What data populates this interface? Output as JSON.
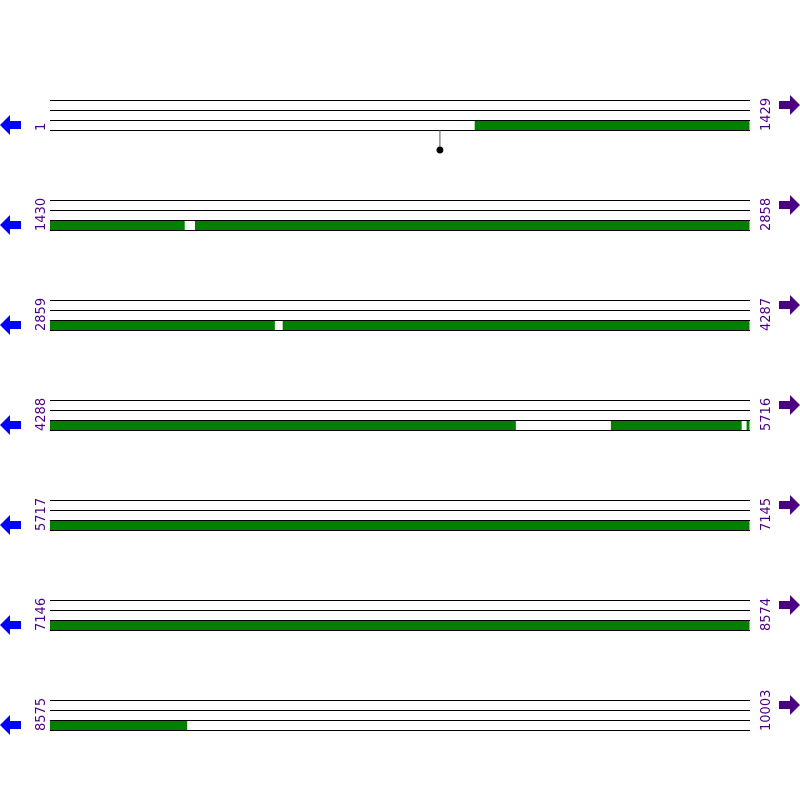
{
  "colors": {
    "feature": "#008000",
    "label": "#4b0082",
    "left_arrow": "#0000ff",
    "right_arrow": "#4b0082",
    "marker_stem": "#cc0000",
    "line": "#000000"
  },
  "icons": {
    "left": "arrow-left-icon",
    "right": "arrow-right-icon"
  },
  "bases_per_row": 1429,
  "rows": [
    {
      "start": "1",
      "end": "1429",
      "features": [
        [
          868,
          1429
        ]
      ],
      "markers": [
        797
      ]
    },
    {
      "start": "1430",
      "end": "2858",
      "features": [
        [
          1430,
          1705
        ],
        [
          1726,
          2858
        ]
      ],
      "markers": []
    },
    {
      "start": "2859",
      "end": "4287",
      "features": [
        [
          2859,
          3318
        ],
        [
          3334,
          4287
        ]
      ],
      "markers": []
    },
    {
      "start": "4288",
      "end": "5716",
      "features": [
        [
          4288,
          5239
        ],
        [
          5433,
          5700
        ],
        [
          5710,
          5716
        ]
      ],
      "markers": []
    },
    {
      "start": "5717",
      "end": "7145",
      "features": [
        [
          5717,
          7145
        ]
      ],
      "markers": []
    },
    {
      "start": "7146",
      "end": "8574",
      "features": [
        [
          7146,
          8574
        ]
      ],
      "markers": []
    },
    {
      "start": "8575",
      "end": "10003",
      "features": [
        [
          8575,
          8855
        ]
      ],
      "markers": []
    }
  ]
}
